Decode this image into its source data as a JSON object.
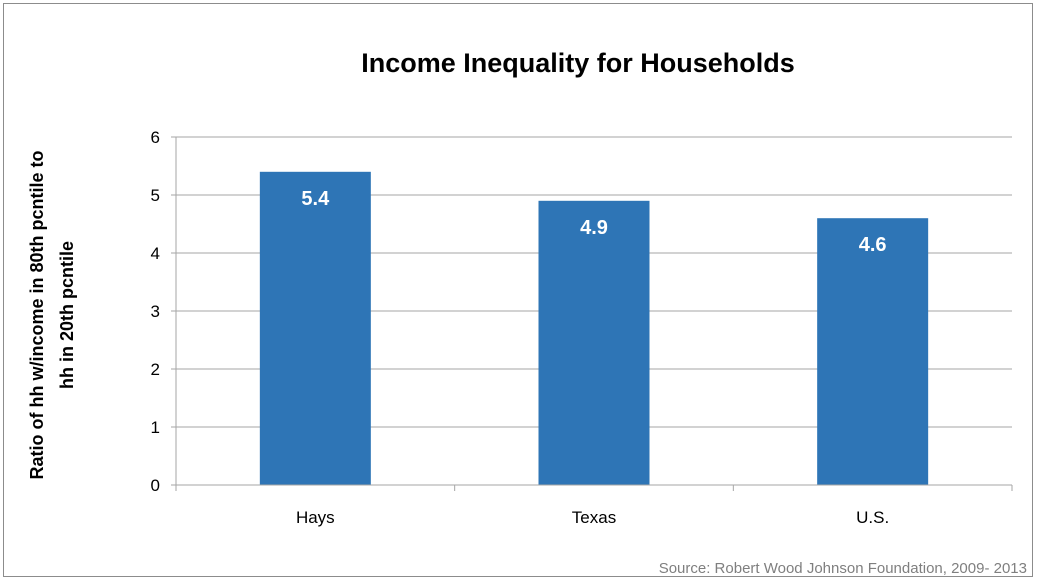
{
  "chart_data": {
    "type": "bar",
    "title": "Income Inequality for Households",
    "ylabel_lines": [
      "Ratio of hh w/income in 80th pcntile to",
      "hh in  20th pcntile"
    ],
    "xlabel": "",
    "categories": [
      "Hays",
      "Texas",
      "U.S."
    ],
    "values": [
      5.4,
      4.9,
      4.6
    ],
    "data_labels": [
      "5.4",
      "4.9",
      "4.6"
    ],
    "ylim": [
      0,
      6
    ],
    "yticks": [
      0,
      1,
      2,
      3,
      4,
      5,
      6
    ],
    "grid": true,
    "legend": "none",
    "bar_color": "#2E75B6",
    "grid_color": "#A6A6A6",
    "source": "Source: Robert Wood Johnson Foundation, 2009- 2013"
  }
}
